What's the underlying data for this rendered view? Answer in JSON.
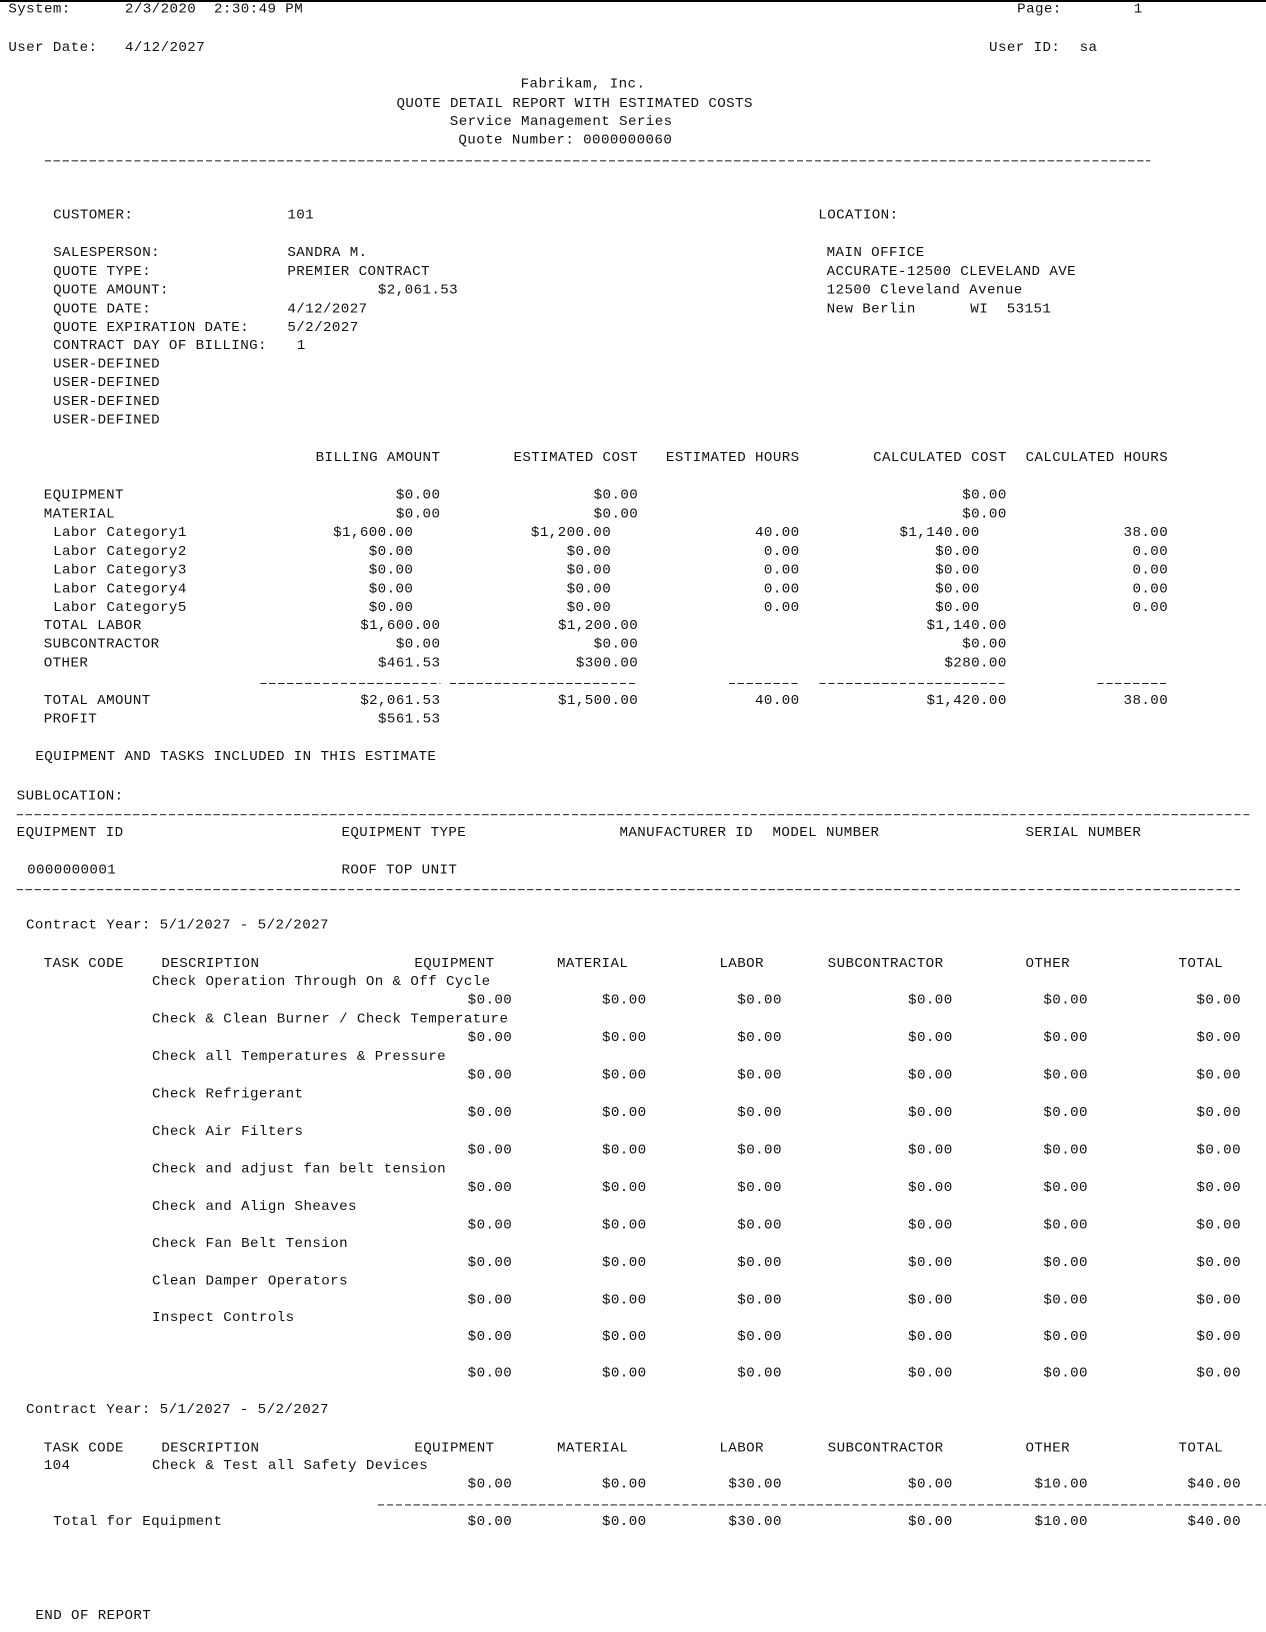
{
  "header": {
    "system_label": "System:",
    "system_value": "2/3/2020  2:30:49 PM",
    "page_label": "Page:",
    "page_value": "1",
    "user_date_label": "User Date:",
    "user_date_value": "4/12/2027",
    "user_id_label": "User ID:",
    "user_id_value": "sa",
    "company": "Fabrikam, Inc.",
    "title": "QUOTE DETAIL REPORT WITH ESTIMATED COSTS",
    "series": "Service Management Series",
    "quote_number": "Quote Number: 0000000060"
  },
  "quote": {
    "customer_label": "CUSTOMER:",
    "customer_value": "101",
    "location_label": "LOCATION:",
    "fields": [
      {
        "label": "SALESPERSON:",
        "value": "SANDRA M."
      },
      {
        "label": "QUOTE TYPE:",
        "value": "PREMIER CONTRACT"
      },
      {
        "label": "QUOTE AMOUNT:",
        "value": "$2,061.53"
      },
      {
        "label": "QUOTE DATE:",
        "value": "4/12/2027"
      },
      {
        "label": "QUOTE EXPIRATION DATE:",
        "value": "5/2/2027"
      },
      {
        "label": "CONTRACT DAY OF BILLING:",
        "value": "1"
      },
      {
        "label": "USER-DEFINED",
        "value": ""
      },
      {
        "label": "USER-DEFINED",
        "value": ""
      },
      {
        "label": "USER-DEFINED",
        "value": ""
      },
      {
        "label": "USER-DEFINED",
        "value": ""
      }
    ],
    "location": {
      "name": "MAIN OFFICE",
      "line1": "ACCURATE-12500 CLEVELAND AVE",
      "line2": "12500 Cleveland Avenue",
      "city": "New Berlin",
      "state": "WI",
      "zip": "53151"
    }
  },
  "costs": {
    "headers": [
      "BILLING AMOUNT",
      "ESTIMATED COST",
      "ESTIMATED HOURS",
      "CALCULATED COST",
      "CALCULATED HOURS"
    ],
    "rows": [
      {
        "label": "EQUIPMENT",
        "indent": false,
        "values": [
          "$0.00",
          "$0.00",
          "",
          "$0.00",
          ""
        ]
      },
      {
        "label": "MATERIAL",
        "indent": false,
        "values": [
          "$0.00",
          "$0.00",
          "",
          "$0.00",
          ""
        ]
      },
      {
        "label": "Labor Category1",
        "indent": true,
        "values": [
          "$1,600.00",
          "$1,200.00",
          "40.00",
          "$1,140.00",
          "38.00"
        ]
      },
      {
        "label": "Labor Category2",
        "indent": true,
        "values": [
          "$0.00",
          "$0.00",
          "0.00",
          "$0.00",
          "0.00"
        ]
      },
      {
        "label": "Labor Category3",
        "indent": true,
        "values": [
          "$0.00",
          "$0.00",
          "0.00",
          "$0.00",
          "0.00"
        ]
      },
      {
        "label": "Labor Category4",
        "indent": true,
        "values": [
          "$0.00",
          "$0.00",
          "0.00",
          "$0.00",
          "0.00"
        ]
      },
      {
        "label": "Labor Category5",
        "indent": true,
        "values": [
          "$0.00",
          "$0.00",
          "0.00",
          "$0.00",
          "0.00"
        ]
      },
      {
        "label": "TOTAL LABOR",
        "indent": false,
        "values": [
          "$1,600.00",
          "$1,200.00",
          "",
          "$1,140.00",
          ""
        ]
      },
      {
        "label": "SUBCONTRACTOR",
        "indent": false,
        "values": [
          "$0.00",
          "$0.00",
          "",
          "$0.00",
          ""
        ]
      },
      {
        "label": "OTHER",
        "indent": false,
        "values": [
          "$461.53",
          "$300.00",
          "",
          "$280.00",
          ""
        ]
      }
    ],
    "total": {
      "label": "TOTAL AMOUNT",
      "values": [
        "$2,061.53",
        "$1,500.00",
        "40.00",
        "$1,420.00",
        "38.00"
      ]
    },
    "profit": {
      "label": "PROFIT",
      "value": "$561.53"
    }
  },
  "equipment_section": {
    "title": "EQUIPMENT AND TASKS INCLUDED IN THIS ESTIMATE",
    "sublocation_label": "SUBLOCATION:",
    "headers": [
      "EQUIPMENT ID",
      "EQUIPMENT TYPE",
      "MANUFACTURER ID",
      "MODEL NUMBER",
      "SERIAL NUMBER"
    ],
    "equipment_id": "0000000001",
    "equipment_type": "ROOF TOP UNIT"
  },
  "task_headers": [
    "TASK CODE",
    "DESCRIPTION",
    "EQUIPMENT",
    "MATERIAL",
    "LABOR",
    "SUBCONTRACTOR",
    "OTHER",
    "TOTAL"
  ],
  "contracts": [
    {
      "year": "Contract Year: 5/1/2027 - 5/2/2027",
      "tasks": [
        {
          "code": "",
          "description": "Check Operation Through On & Off Cycle",
          "values": [
            "$0.00",
            "$0.00",
            "$0.00",
            "$0.00",
            "$0.00",
            "$0.00"
          ]
        },
        {
          "code": "",
          "description": "Check & Clean Burner / Check Temperature",
          "values": [
            "$0.00",
            "$0.00",
            "$0.00",
            "$0.00",
            "$0.00",
            "$0.00"
          ]
        },
        {
          "code": "",
          "description": "Check all Temperatures & Pressure",
          "values": [
            "$0.00",
            "$0.00",
            "$0.00",
            "$0.00",
            "$0.00",
            "$0.00"
          ]
        },
        {
          "code": "",
          "description": "Check Refrigerant",
          "values": [
            "$0.00",
            "$0.00",
            "$0.00",
            "$0.00",
            "$0.00",
            "$0.00"
          ]
        },
        {
          "code": "",
          "description": "Check Air Filters",
          "values": [
            "$0.00",
            "$0.00",
            "$0.00",
            "$0.00",
            "$0.00",
            "$0.00"
          ]
        },
        {
          "code": "",
          "description": "Check and adjust fan belt tension",
          "values": [
            "$0.00",
            "$0.00",
            "$0.00",
            "$0.00",
            "$0.00",
            "$0.00"
          ]
        },
        {
          "code": "",
          "description": "Check and Align Sheaves",
          "values": [
            "$0.00",
            "$0.00",
            "$0.00",
            "$0.00",
            "$0.00",
            "$0.00"
          ]
        },
        {
          "code": "",
          "description": "Check Fan Belt Tension",
          "values": [
            "$0.00",
            "$0.00",
            "$0.00",
            "$0.00",
            "$0.00",
            "$0.00"
          ]
        },
        {
          "code": "",
          "description": "Clean Damper Operators",
          "values": [
            "$0.00",
            "$0.00",
            "$0.00",
            "$0.00",
            "$0.00",
            "$0.00"
          ]
        },
        {
          "code": "",
          "description": "Inspect Controls",
          "values": [
            "$0.00",
            "$0.00",
            "$0.00",
            "$0.00",
            "$0.00",
            "$0.00"
          ]
        }
      ],
      "subtotal": [
        "$0.00",
        "$0.00",
        "$0.00",
        "$0.00",
        "$0.00",
        "$0.00"
      ]
    },
    {
      "year": "Contract Year: 5/1/2027 - 5/2/2027",
      "tasks": [
        {
          "code": "104",
          "description": "Check & Test all Safety Devices",
          "values": [
            "$0.00",
            "$0.00",
            "$30.00",
            "$0.00",
            "$10.00",
            "$40.00"
          ]
        }
      ]
    }
  ],
  "equipment_total": {
    "label": "Total for Equipment",
    "values": [
      "$0.00",
      "$0.00",
      "$30.00",
      "$0.00",
      "$10.00",
      "$40.00"
    ]
  },
  "footer": {
    "end": "END OF REPORT"
  }
}
